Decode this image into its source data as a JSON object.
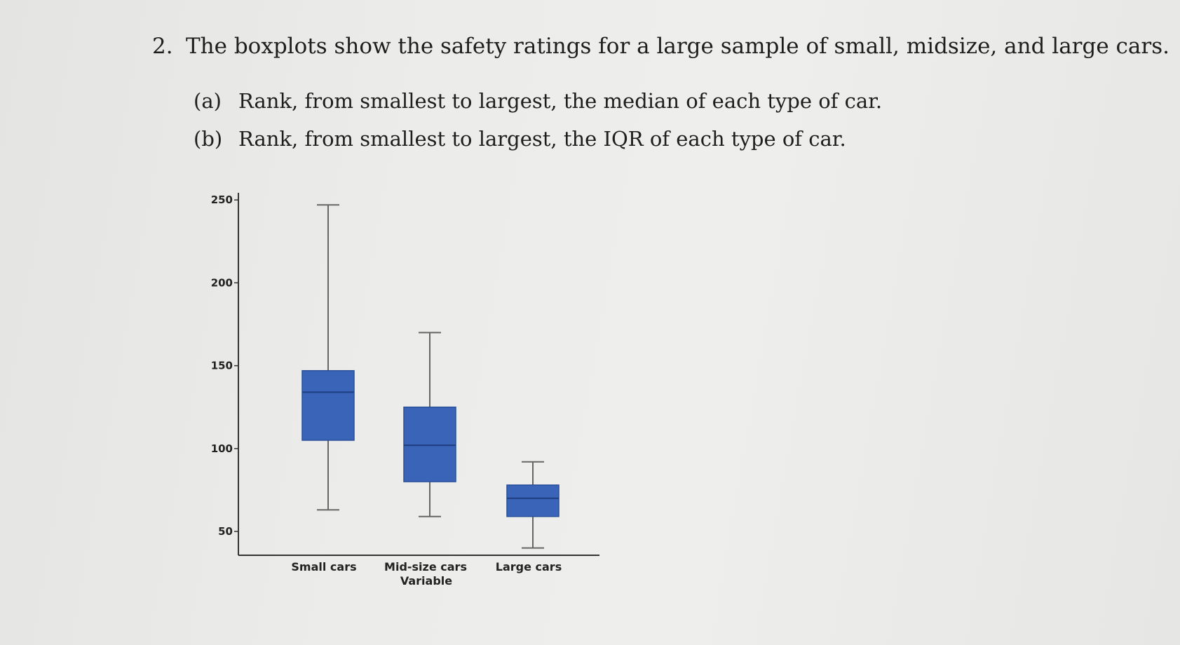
{
  "question": {
    "number": "2.",
    "text": "The boxplots show the safety ratings for a large sample of small, midsize, and large cars.",
    "parts": [
      {
        "label": "(a)",
        "text": "Rank, from smallest to largest, the median of each type of car."
      },
      {
        "label": "(b)",
        "text": "Rank, from smallest to largest, the IQR of each type of car."
      }
    ]
  },
  "chart_data": {
    "type": "box",
    "categories": [
      "Small cars",
      "Mid-size cars",
      "Large cars"
    ],
    "xlabel": "Variable",
    "ylabel": "",
    "ylim": [
      35,
      250
    ],
    "yticks": [
      50,
      100,
      150,
      200,
      250
    ],
    "boxes": [
      {
        "category": "Small cars",
        "min": 63,
        "q1": 105,
        "median": 134,
        "q3": 147,
        "max": 247
      },
      {
        "category": "Mid-size cars",
        "min": 59,
        "q1": 80,
        "median": 102,
        "q3": 125,
        "max": 170
      },
      {
        "category": "Large cars",
        "min": 40,
        "q1": 59,
        "median": 70,
        "q3": 78,
        "max": 92
      }
    ],
    "colors": {
      "box": "#3a64b8",
      "box_edge": "#2a4f9a",
      "median": "#1f3e80",
      "whisker": "#666666"
    },
    "grid": false,
    "legend": "none"
  }
}
